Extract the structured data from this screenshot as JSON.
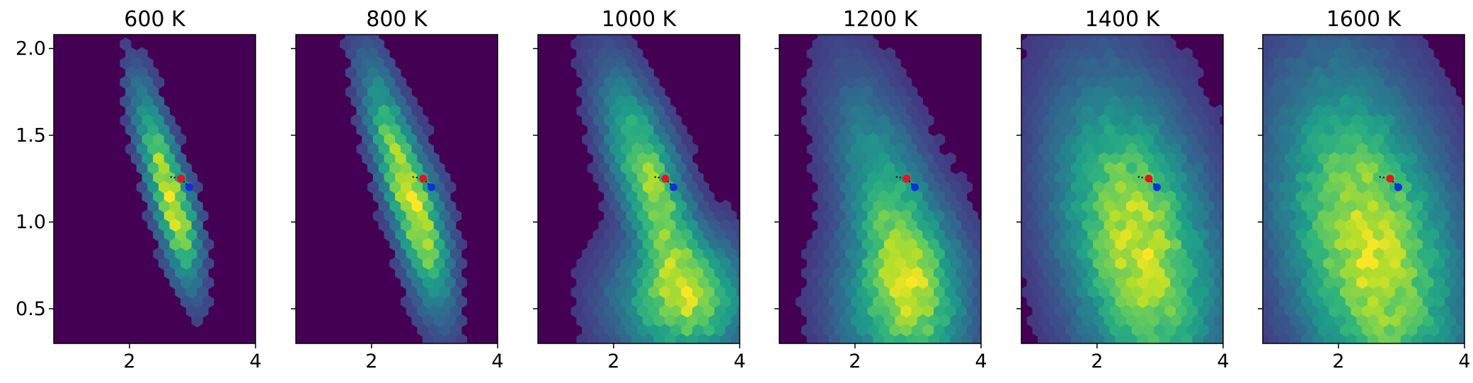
{
  "chart_data": {
    "type": "heatmap",
    "subtype": "hexbin",
    "colormap": "viridis",
    "colors": {
      "empty": "#440154",
      "marker_red": "#e8141b",
      "marker_blue": "#1030e0",
      "path": "#000000"
    },
    "xlim": [
      0.8,
      4.0
    ],
    "ylim": [
      0.3,
      2.08
    ],
    "x_ticks": [
      2,
      4
    ],
    "y_ticks": [
      0.5,
      1.0,
      1.5,
      2.0
    ],
    "x_tick_labels": [
      "2",
      "4"
    ],
    "y_tick_labels": [
      "0.5",
      "1.0",
      "1.5",
      "2.0"
    ],
    "shared_y": true,
    "grid": false,
    "panels": [
      {
        "title": "600 K",
        "density_description": "single elongated lobe",
        "modes": [
          {
            "cx": 2.55,
            "cy": 1.25,
            "sx": 0.28,
            "sy": 0.32,
            "rho": -0.78,
            "w": 1.0
          },
          {
            "cx": 2.85,
            "cy": 0.95,
            "sx": 0.18,
            "sy": 0.2,
            "rho": -0.3,
            "w": 0.45
          }
        ],
        "scale": 1.0,
        "cutoff": 0.04,
        "markers": [
          {
            "color": "red",
            "x": 2.82,
            "y": 1.25
          },
          {
            "color": "blue",
            "x": 2.95,
            "y": 1.2
          }
        ],
        "path": [
          [
            2.65,
            1.26
          ],
          [
            2.82,
            1.25
          ],
          [
            2.95,
            1.2
          ]
        ]
      },
      {
        "title": "800 K",
        "density_description": "single elongated lobe, broader",
        "modes": [
          {
            "cx": 2.5,
            "cy": 1.25,
            "sx": 0.36,
            "sy": 0.38,
            "rho": -0.8,
            "w": 1.0
          },
          {
            "cx": 2.9,
            "cy": 0.9,
            "sx": 0.25,
            "sy": 0.28,
            "rho": -0.3,
            "w": 0.4
          }
        ],
        "scale": 1.0,
        "cutoff": 0.03,
        "markers": [
          {
            "color": "red",
            "x": 2.82,
            "y": 1.25
          },
          {
            "color": "blue",
            "x": 2.95,
            "y": 1.2
          }
        ],
        "path": [
          [
            2.65,
            1.26
          ],
          [
            2.82,
            1.25
          ],
          [
            2.95,
            1.2
          ]
        ]
      },
      {
        "title": "1000 K",
        "density_description": "upper lobe plus lower-right lobe",
        "modes": [
          {
            "cx": 2.6,
            "cy": 1.2,
            "sx": 0.45,
            "sy": 0.38,
            "rho": -0.7,
            "w": 0.9
          },
          {
            "cx": 3.1,
            "cy": 0.55,
            "sx": 0.65,
            "sy": 0.22,
            "rho": 0.0,
            "w": 0.85
          }
        ],
        "scale": 1.0,
        "cutoff": 0.02,
        "markers": [
          {
            "color": "red",
            "x": 2.82,
            "y": 1.25
          },
          {
            "color": "blue",
            "x": 2.95,
            "y": 1.2
          }
        ],
        "path": [
          [
            2.65,
            1.26
          ],
          [
            2.82,
            1.25
          ],
          [
            2.95,
            1.2
          ]
        ]
      },
      {
        "title": "1200 K",
        "density_description": "broad distribution, maximum near bottom",
        "modes": [
          {
            "cx": 2.6,
            "cy": 1.05,
            "sx": 0.55,
            "sy": 0.45,
            "rho": -0.6,
            "w": 0.75
          },
          {
            "cx": 2.75,
            "cy": 0.55,
            "sx": 0.6,
            "sy": 0.3,
            "rho": 0.0,
            "w": 1.0
          }
        ],
        "scale": 1.0,
        "cutoff": 0.02,
        "markers": [
          {
            "color": "red",
            "x": 2.82,
            "y": 1.25
          },
          {
            "color": "blue",
            "x": 2.95,
            "y": 1.2
          }
        ],
        "path": [
          [
            2.65,
            1.26
          ],
          [
            2.82,
            1.25
          ],
          [
            2.95,
            1.2
          ]
        ]
      },
      {
        "title": "1400 K",
        "density_description": "very broad distribution",
        "modes": [
          {
            "cx": 2.65,
            "cy": 0.85,
            "sx": 0.75,
            "sy": 0.55,
            "rho": -0.35,
            "w": 1.0
          }
        ],
        "scale": 1.0,
        "cutoff": 0.02,
        "markers": [
          {
            "color": "red",
            "x": 2.82,
            "y": 1.25
          },
          {
            "color": "blue",
            "x": 2.95,
            "y": 1.2
          }
        ],
        "path": [
          [
            2.65,
            1.26
          ],
          [
            2.82,
            1.25
          ],
          [
            2.95,
            1.2
          ]
        ]
      },
      {
        "title": "1600 K",
        "density_description": "very broad distribution, widest",
        "modes": [
          {
            "cx": 2.5,
            "cy": 0.85,
            "sx": 0.85,
            "sy": 0.6,
            "rho": -0.35,
            "w": 1.0
          }
        ],
        "scale": 1.0,
        "cutoff": 0.02,
        "markers": [
          {
            "color": "red",
            "x": 2.82,
            "y": 1.25
          },
          {
            "color": "blue",
            "x": 2.95,
            "y": 1.2
          }
        ],
        "path": [
          [
            2.65,
            1.26
          ],
          [
            2.82,
            1.25
          ],
          [
            2.95,
            1.2
          ]
        ]
      }
    ]
  }
}
